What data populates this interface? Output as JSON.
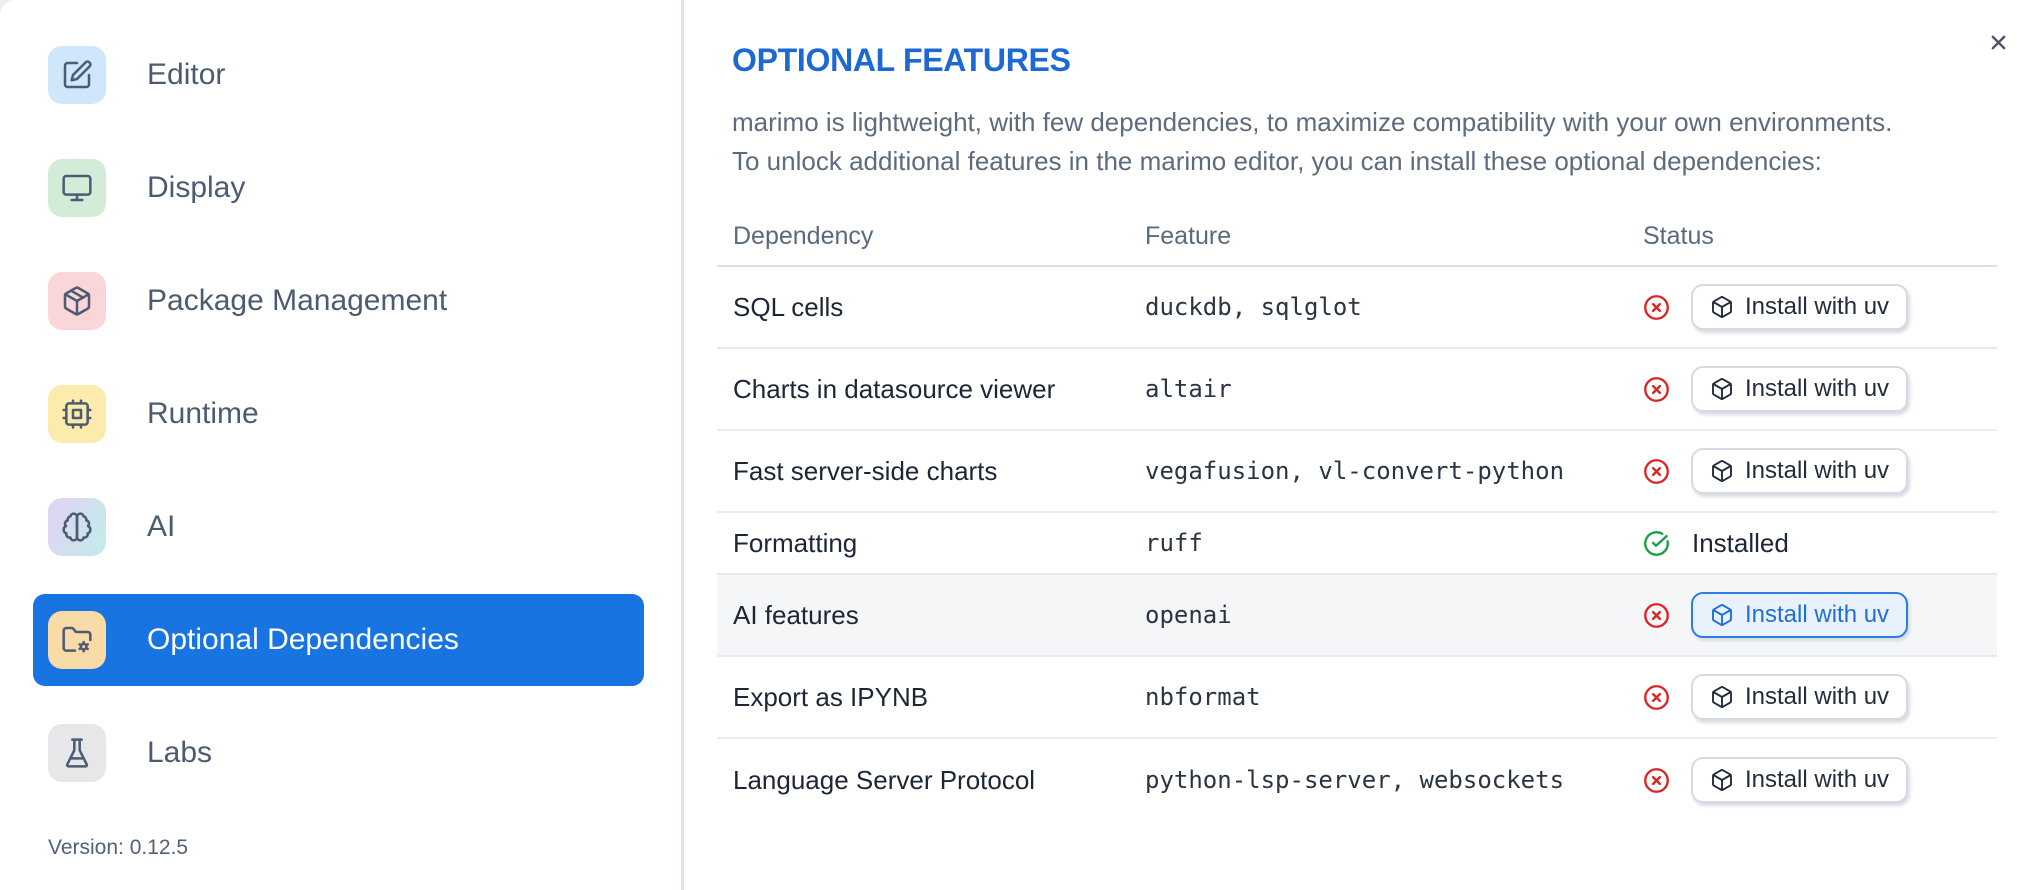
{
  "sidebar": {
    "items": [
      {
        "label": "Editor",
        "icon": "edit-icon",
        "icon_bg": "#cfe7fb",
        "selected": false
      },
      {
        "label": "Display",
        "icon": "monitor-icon",
        "icon_bg": "#d3ecd8",
        "selected": false
      },
      {
        "label": "Package Management",
        "icon": "package-icon",
        "icon_bg": "#fbd6d8",
        "selected": false
      },
      {
        "label": "Runtime",
        "icon": "cpu-icon",
        "icon_bg": "#fcecab",
        "selected": false
      },
      {
        "label": "AI",
        "icon": "brain-icon",
        "icon_bg": "linear-gradient(115deg,#ddd6f3 20%,#c6e9ec 85%)",
        "selected": false
      },
      {
        "label": "Optional Dependencies",
        "icon": "folder-cog-icon",
        "icon_bg": "#f8dba6",
        "selected": true
      },
      {
        "label": "Labs",
        "icon": "flask-icon",
        "icon_bg": "#e6e7e9",
        "selected": false
      }
    ],
    "selected_bg": "#1774e0",
    "version_label": "Version: 0.12.5"
  },
  "dialog": {
    "title": "OPTIONAL FEATURES",
    "title_color": "#1c68d4",
    "description_line1": "marimo is lightweight, with few dependencies, to maximize compatibility with your own environments.",
    "description_line2": "To unlock additional features in the marimo editor, you can install these optional dependencies:",
    "close_icon": "x-icon"
  },
  "table": {
    "columns": {
      "dependency": "Dependency",
      "feature": "Feature",
      "status": "Status"
    },
    "install_button_label": "Install with uv",
    "installed_label": "Installed",
    "status_colors": {
      "error": "#dc2626",
      "success": "#1b9e4b"
    },
    "rows": [
      {
        "dependency": "SQL cells",
        "feature": "duckdb, sqlglot",
        "status": "not-installed",
        "action_label": "Install with uv",
        "highlighted": false,
        "button_focused": false
      },
      {
        "dependency": "Charts in datasource viewer",
        "feature": "altair",
        "status": "not-installed",
        "action_label": "Install with uv",
        "highlighted": false,
        "button_focused": false
      },
      {
        "dependency": "Fast server-side charts",
        "feature": "vegafusion, vl-convert-python",
        "status": "not-installed",
        "action_label": "Install with uv",
        "highlighted": false,
        "button_focused": false
      },
      {
        "dependency": "Formatting",
        "feature": "ruff",
        "status": "installed",
        "status_label": "Installed",
        "highlighted": false,
        "button_focused": false
      },
      {
        "dependency": "AI features",
        "feature": "openai",
        "status": "not-installed",
        "action_label": "Install with uv",
        "highlighted": true,
        "button_focused": true
      },
      {
        "dependency": "Export as IPYNB",
        "feature": "nbformat",
        "status": "not-installed",
        "action_label": "Install with uv",
        "highlighted": false,
        "button_focused": false
      },
      {
        "dependency": "Language Server Protocol",
        "feature": "python-lsp-server, websockets",
        "status": "not-installed",
        "action_label": "Install with uv",
        "highlighted": false,
        "button_focused": false
      }
    ]
  }
}
